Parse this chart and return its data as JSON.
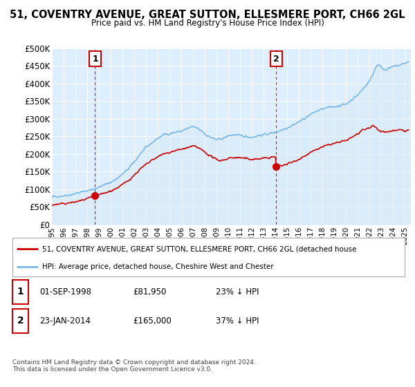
{
  "title": "51, COVENTRY AVENUE, GREAT SUTTON, ELLESMERE PORT, CH66 2GL",
  "subtitle": "Price paid vs. HM Land Registry's House Price Index (HPI)",
  "ylabel_ticks": [
    "£0",
    "£50K",
    "£100K",
    "£150K",
    "£200K",
    "£250K",
    "£300K",
    "£350K",
    "£400K",
    "£450K",
    "£500K"
  ],
  "ytick_values": [
    0,
    50000,
    100000,
    150000,
    200000,
    250000,
    300000,
    350000,
    400000,
    450000,
    500000
  ],
  "ylim": [
    0,
    500000
  ],
  "xlim_start": 1995.0,
  "xlim_end": 2025.5,
  "hpi_color": "#7ab8e8",
  "hpi_fill_color": "#d8eaf8",
  "price_color": "#cc0000",
  "vline_color": "#cc0000",
  "sale1_date": 1998.67,
  "sale1_price": 81950,
  "sale2_date": 2014.06,
  "sale2_price": 165000,
  "annotation1_label": "1",
  "annotation2_label": "2",
  "legend_label_red": "51, COVENTRY AVENUE, GREAT SUTTON, ELLESMERE PORT, CH66 2GL (detached house",
  "legend_label_blue": "HPI: Average price, detached house, Cheshire West and Chester",
  "table_row1": [
    "1",
    "01-SEP-1998",
    "£81,950",
    "23% ↓ HPI"
  ],
  "table_row2": [
    "2",
    "23-JAN-2014",
    "£165,000",
    "37% ↓ HPI"
  ],
  "footer": "Contains HM Land Registry data © Crown copyright and database right 2024.\nThis data is licensed under the Open Government Licence v3.0.",
  "background_color": "#ffffff",
  "plot_bg_color": "#ddeeff"
}
